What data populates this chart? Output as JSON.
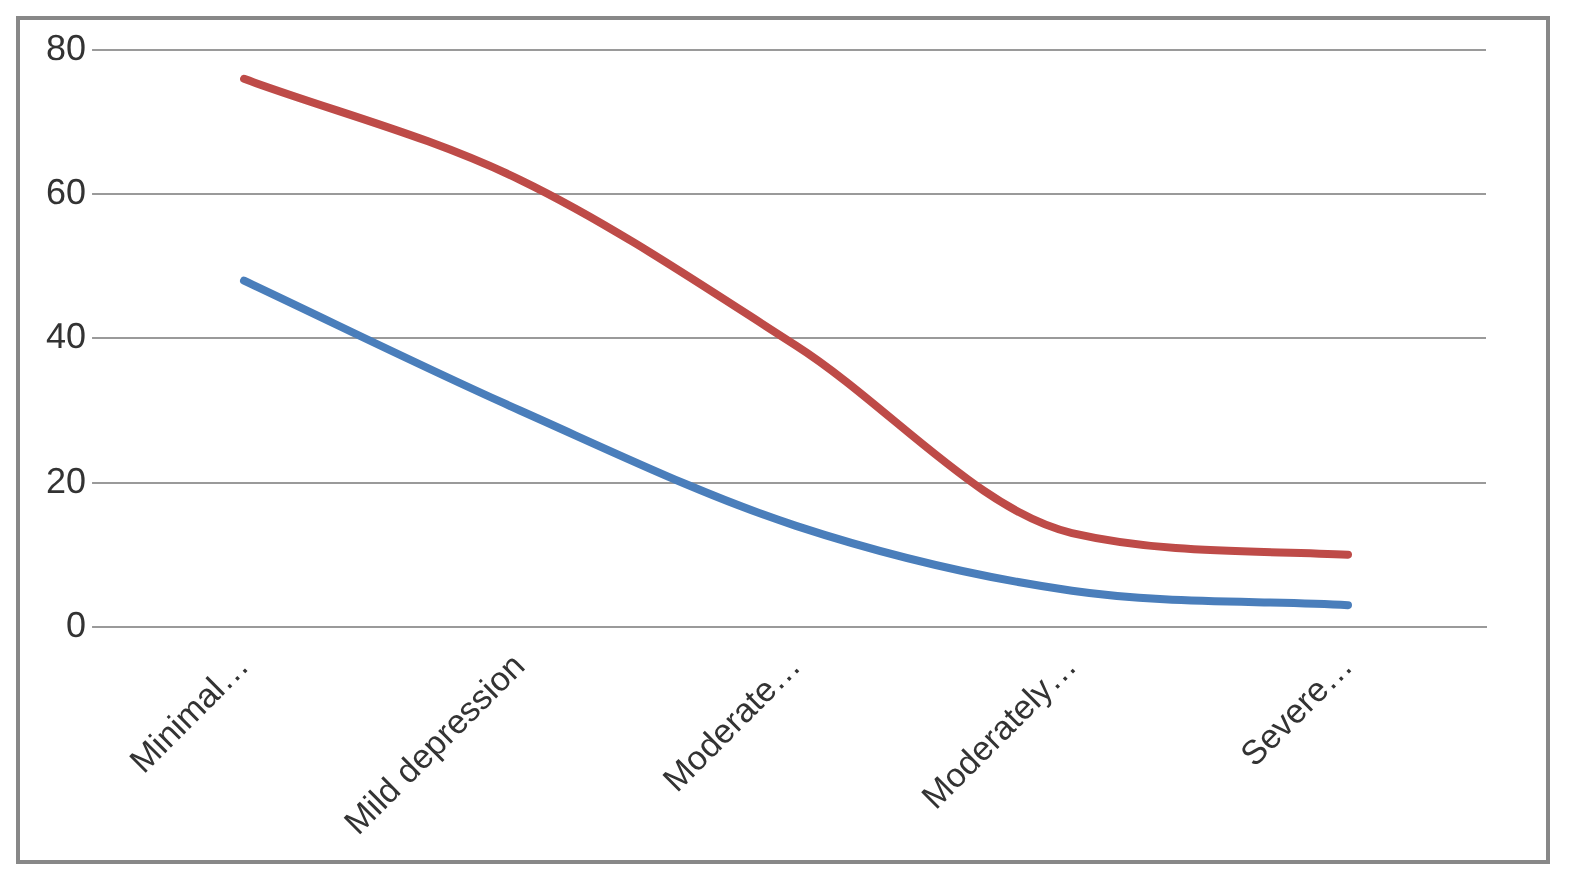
{
  "chart_data": {
    "type": "line",
    "categories": [
      "Minimal…",
      "Mild depression",
      "Moderate…",
      "Moderately…",
      "Severe…"
    ],
    "series": [
      {
        "color": "#be4b48",
        "values": [
          76,
          62,
          39,
          13,
          10
        ]
      },
      {
        "color": "#4a7ebb",
        "values": [
          48,
          30,
          14,
          5,
          3
        ]
      }
    ],
    "ylim": [
      0,
      80
    ],
    "yticks": [
      0,
      20,
      40,
      60,
      80
    ],
    "grid": "y",
    "legend": false,
    "marker": "none",
    "line_style": "solid"
  }
}
